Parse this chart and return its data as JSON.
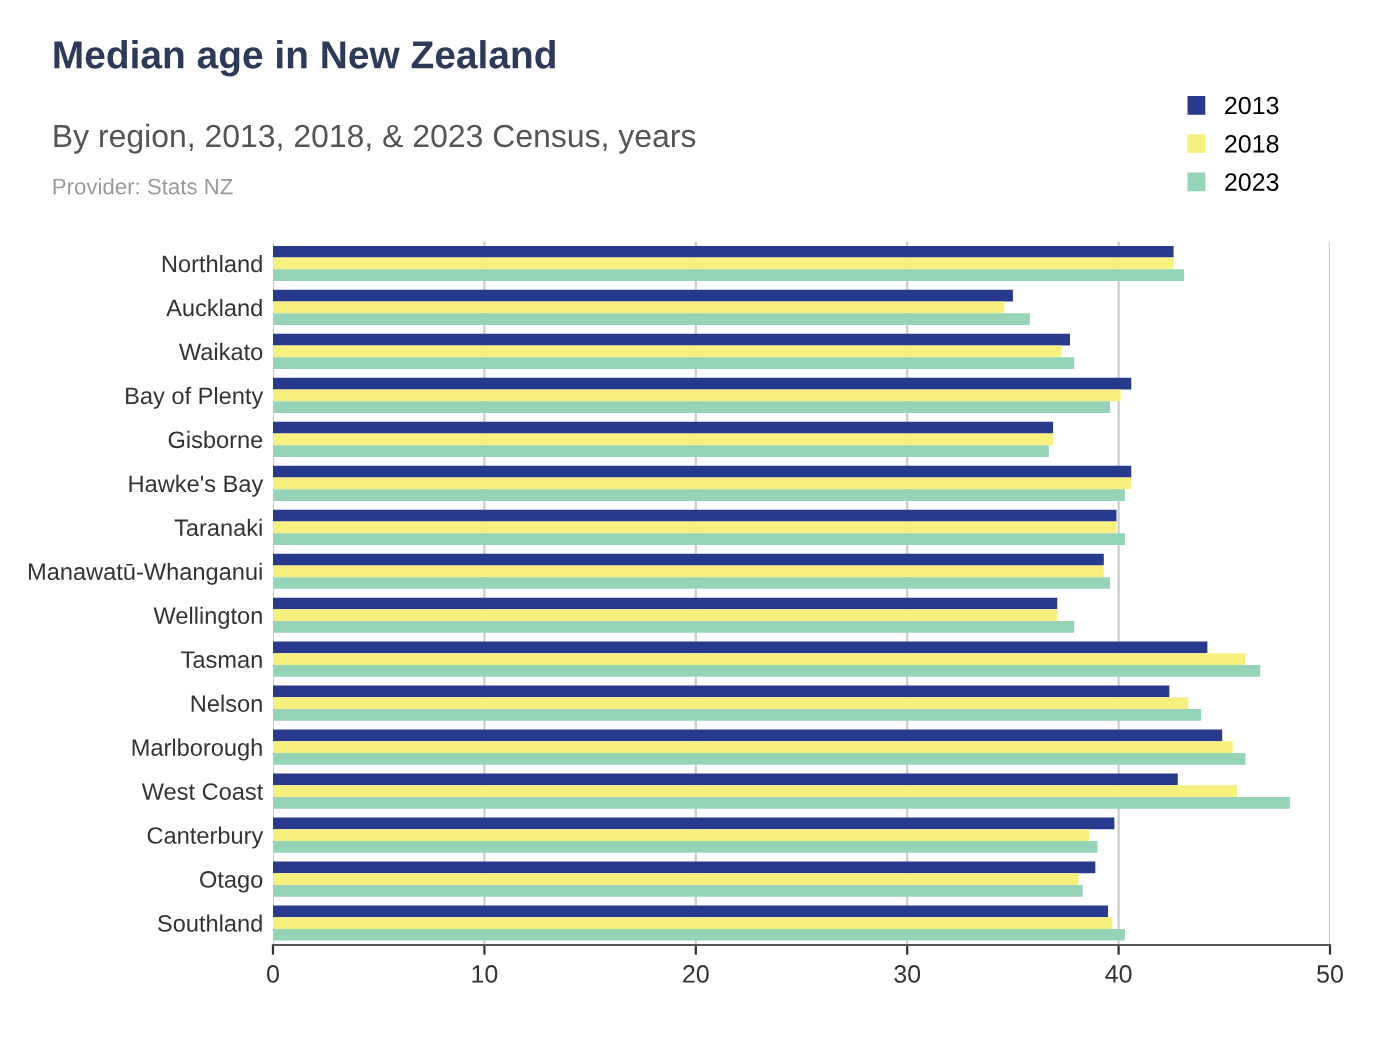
{
  "chart_data": {
    "type": "bar",
    "orientation": "horizontal",
    "title": "Median age in New Zealand",
    "subtitle": "By region, 2013, 2018, & 2023 Census, years",
    "annotations": [
      "Provider: Stats NZ"
    ],
    "categories": [
      "Northland",
      "Auckland",
      "Waikato",
      "Bay of Plenty",
      "Gisborne",
      "Hawke's Bay",
      "Taranaki",
      "Manawatū-Whanganui",
      "Wellington",
      "Tasman",
      "Nelson",
      "Marlborough",
      "West Coast",
      "Canterbury",
      "Otago",
      "Southland"
    ],
    "series": [
      {
        "name": "2013",
        "color": "#283a8c",
        "values": [
          42.6,
          35.0,
          37.7,
          40.6,
          36.9,
          40.6,
          39.9,
          39.3,
          37.1,
          44.2,
          42.4,
          44.9,
          42.8,
          39.8,
          38.9,
          39.5
        ]
      },
      {
        "name": "2018",
        "color": "#f7f07e",
        "values": [
          42.6,
          34.6,
          37.3,
          40.1,
          36.9,
          40.6,
          39.9,
          39.3,
          37.1,
          46.0,
          43.3,
          45.4,
          45.6,
          38.6,
          38.1,
          39.7
        ]
      },
      {
        "name": "2023",
        "color": "#96d4b8",
        "values": [
          43.1,
          35.8,
          37.9,
          39.6,
          36.7,
          40.3,
          40.3,
          39.6,
          37.9,
          46.7,
          43.9,
          46.0,
          48.1,
          39.0,
          38.3,
          40.3
        ]
      }
    ],
    "xlim": [
      0,
      50
    ],
    "xticks": [
      0,
      10,
      20,
      30,
      40,
      50
    ],
    "grid": "x",
    "legend": "top right"
  }
}
